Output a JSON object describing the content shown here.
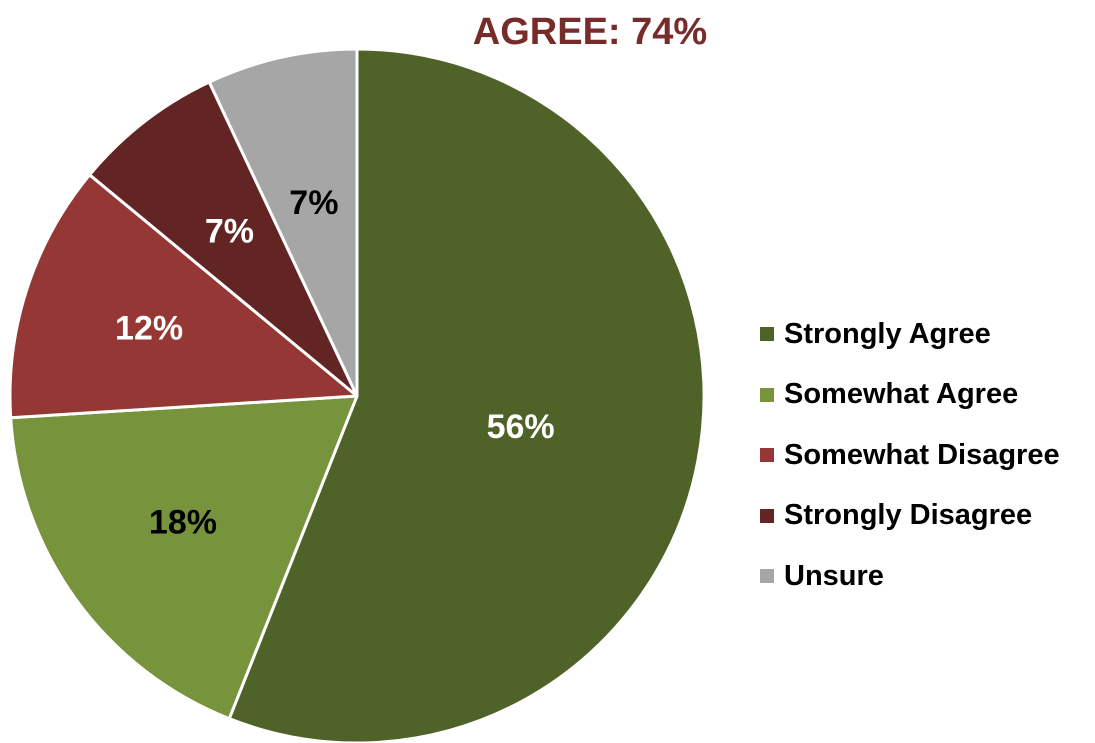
{
  "chart_data": {
    "type": "pie",
    "title": "AGREE: 74%",
    "legend_position": "right",
    "slices": [
      {
        "label": "Strongly Agree",
        "value": 56,
        "display": "56%",
        "color": "#4f6228",
        "text_color": "#ffffff"
      },
      {
        "label": "Somewhat Agree",
        "value": 18,
        "display": "18%",
        "color": "#77933c",
        "text_color": "#000000"
      },
      {
        "label": "Somewhat Disagree",
        "value": 12,
        "display": "12%",
        "color": "#953735",
        "text_color": "#ffffff"
      },
      {
        "label": "Strongly Disagree",
        "value": 7,
        "display": "7%",
        "color": "#632523",
        "text_color": "#ffffff"
      },
      {
        "label": "Unsure",
        "value": 7,
        "display": "7%",
        "color": "#a6a6a6",
        "text_color": "#000000"
      }
    ]
  },
  "colors": {
    "title": "#772c2a",
    "slice_border": "#ffffff"
  }
}
